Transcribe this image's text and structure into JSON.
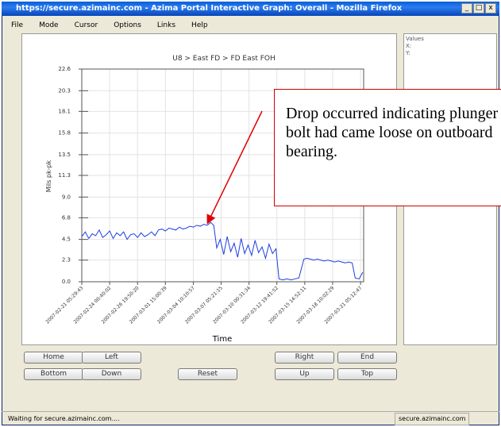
{
  "window": {
    "title": "https://secure.azimainc.com - Azima Portal Interactive Graph: Overall - Mozilla Firefox"
  },
  "menu": [
    "File",
    "Mode",
    "Cursor",
    "Options",
    "Links",
    "Help"
  ],
  "side_panel": [
    "Values",
    "X:",
    "Y:"
  ],
  "chart_data": {
    "type": "line",
    "title": "U8 > East FD > FD East FOH",
    "y_label": "Mils pk-pk",
    "x_label": "Time",
    "ylim": [
      0,
      22.6
    ],
    "yticks": [
      {
        "value": 0,
        "label": "0.0"
      },
      2.3,
      4.5,
      6.8,
      {
        "value": 9,
        "label": "9.0"
      },
      11.3,
      13.5,
      15.8,
      18.1,
      20.3,
      22.6
    ],
    "xlim": [
      0,
      28.3
    ],
    "xticks": [
      {
        "value": 0,
        "label": "2007-02-21 05:29:43"
      },
      {
        "value": 2.799,
        "label": "2007-02-24 00:40:02"
      },
      {
        "value": 5.598,
        "label": "2007-02-26 19:50:20"
      },
      {
        "value": 8.396,
        "label": "2007-03-01 15:00:39"
      },
      {
        "value": 11.195,
        "label": "2007-03-04 10:10:57"
      },
      {
        "value": 13.994,
        "label": "2007-03-07 05:21:15"
      },
      {
        "value": 16.793,
        "label": "2007-03-10 00:31:34"
      },
      {
        "value": 19.592,
        "label": "2007-03-12 19:41:52"
      },
      {
        "value": 22.391,
        "label": "2007-03-15 14:52:11"
      },
      {
        "value": 25.189,
        "label": "2007-03-18 10:02:29"
      },
      {
        "value": 27.988,
        "label": "2007-03-21 05:12:47"
      }
    ],
    "grid": true,
    "series": [
      {
        "color": "#1f3fe0",
        "x": [
          0,
          0.35,
          0.7,
          1.05,
          1.4,
          1.75,
          2.1,
          2.45,
          2.8,
          3.15,
          3.5,
          3.85,
          4.2,
          4.55,
          4.9,
          5.25,
          5.6,
          5.95,
          6.3,
          6.65,
          7,
          7.35,
          7.7,
          8.05,
          8.4,
          8.75,
          9.1,
          9.45,
          9.8,
          10.15,
          10.5,
          10.85,
          11.2,
          11.55,
          11.9,
          12.25,
          12.6,
          12.95,
          13.25,
          13.55,
          13.9,
          14.25,
          14.6,
          14.95,
          15.3,
          15.65,
          16,
          16.35,
          16.7,
          17.05,
          17.4,
          17.75,
          18.1,
          18.45,
          18.8,
          19.15,
          19.5,
          19.8,
          20.2,
          20.6,
          21,
          21.4,
          21.8,
          22.3,
          22.6,
          22.95,
          23.3,
          23.65,
          24,
          24.35,
          24.7,
          25.05,
          25.4,
          25.75,
          26.1,
          26.45,
          26.8,
          27.15,
          27.45,
          27.85,
          28.2
        ],
        "values": [
          4.8,
          5.3,
          4.6,
          5.1,
          4.9,
          5.5,
          4.7,
          5.0,
          5.4,
          4.6,
          5.2,
          4.9,
          5.3,
          4.5,
          5.0,
          5.1,
          4.7,
          5.2,
          4.8,
          5.0,
          5.3,
          4.9,
          5.5,
          5.6,
          5.4,
          5.7,
          5.6,
          5.5,
          5.8,
          5.6,
          5.7,
          5.9,
          5.8,
          6.0,
          5.9,
          6.1,
          6.0,
          6.3,
          6.0,
          3.6,
          4.5,
          2.9,
          4.8,
          3.2,
          4.1,
          2.6,
          4.6,
          3.0,
          3.9,
          2.8,
          4.4,
          3.1,
          3.7,
          2.5,
          4.0,
          3.0,
          3.5,
          0.3,
          0.2,
          0.3,
          0.2,
          0.3,
          0.4,
          2.4,
          2.5,
          2.4,
          2.3,
          2.4,
          2.3,
          2.2,
          2.3,
          2.2,
          2.1,
          2.2,
          2.1,
          2.0,
          2.1,
          2.0,
          0.4,
          0.3,
          1.0
        ]
      }
    ]
  },
  "annotation": "Drop occurred indicating plunger bolt had came loose on outboard bearing.",
  "buttons": [
    "Home",
    "Left",
    "Right",
    "End",
    "Bottom",
    "Down",
    "Reset",
    "Up",
    "Top"
  ],
  "status": {
    "left": "Waiting for secure.azimainc.com....",
    "right": "secure.azimainc.com"
  }
}
